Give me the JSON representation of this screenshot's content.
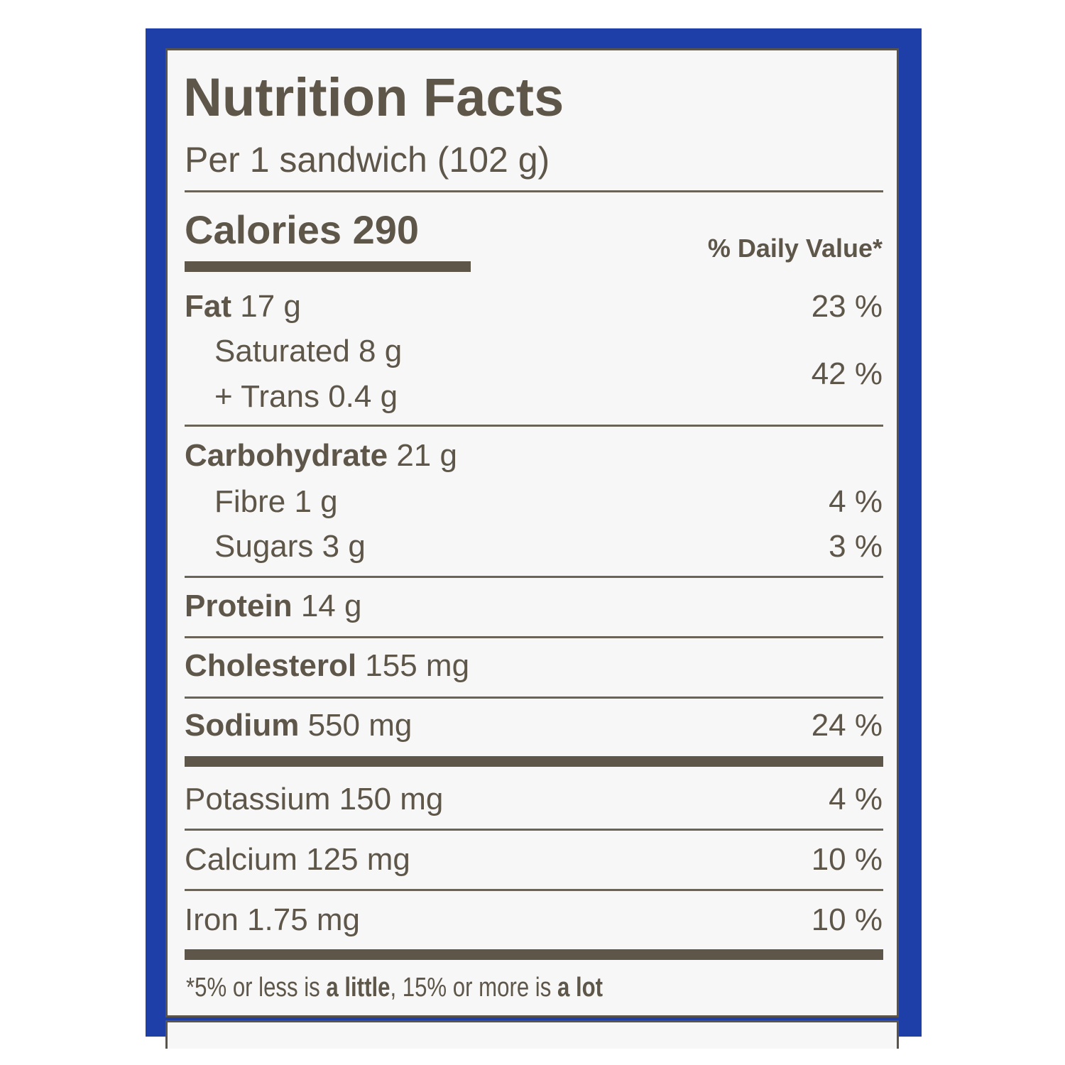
{
  "label": {
    "title": "Nutrition Facts",
    "serving": "Per 1 sandwich (102 g)",
    "calories": {
      "label": "Calories",
      "value": "290"
    },
    "dv_header": "% Daily Value*",
    "fat": {
      "label": "Fat",
      "amount": "17 g",
      "dv": "23 %"
    },
    "saturated": {
      "label": "Saturated 8 g"
    },
    "trans": {
      "label": "+ Trans 0.4 g"
    },
    "sat_trans_dv": "42 %",
    "carbohydrate": {
      "label": "Carbohydrate",
      "amount": "21 g"
    },
    "fibre": {
      "label": "Fibre 1 g",
      "dv": "4 %"
    },
    "sugars": {
      "label": "Sugars 3 g",
      "dv": "3 %"
    },
    "protein": {
      "label": "Protein",
      "amount": "14 g"
    },
    "cholesterol": {
      "label": "Cholesterol",
      "amount": "155 mg"
    },
    "sodium": {
      "label": "Sodium",
      "amount": "550 mg",
      "dv": "24 %"
    },
    "potassium": {
      "label": "Potassium 150 mg",
      "dv": "4 %"
    },
    "calcium": {
      "label": "Calcium 125 mg",
      "dv": "10 %"
    },
    "iron": {
      "label": "Iron 1.75 mg",
      "dv": "10 %"
    },
    "footnote": {
      "p1": "*5% or less is ",
      "b1": "a little",
      ",p2": "",
      "p2": ", 15% or more is ",
      "b2": "a lot"
    }
  },
  "colors": {
    "frame": "#1f3fa8",
    "text": "#5e5649"
  }
}
